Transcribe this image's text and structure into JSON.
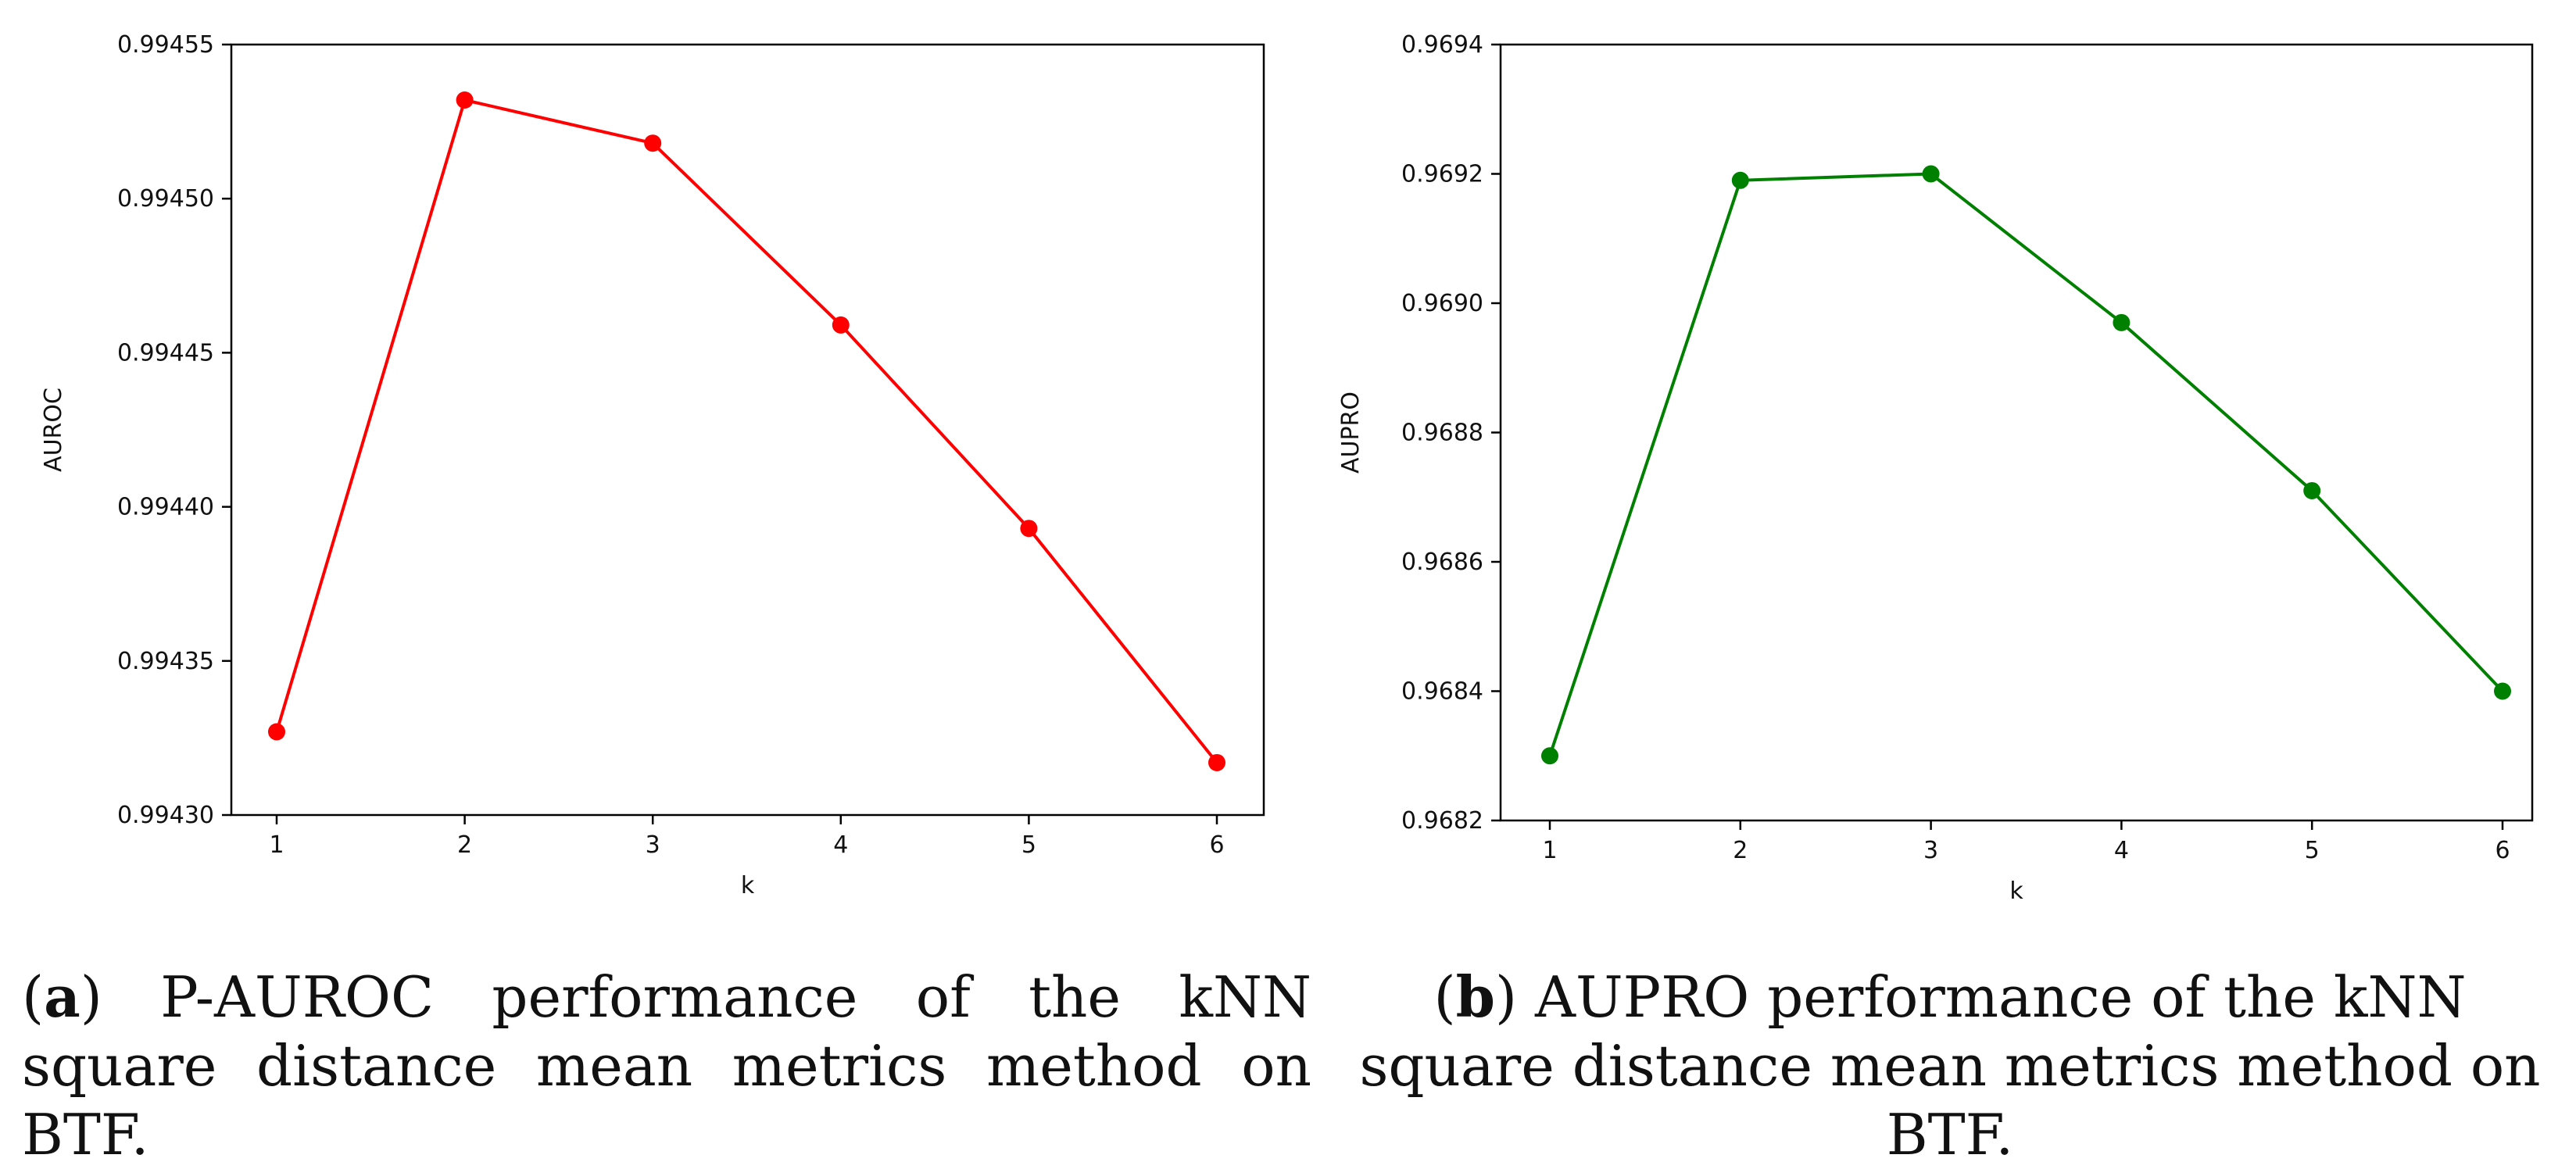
{
  "chart_data": [
    {
      "type": "line",
      "xlabel": "k",
      "ylabel": "AUROC",
      "x": [
        1,
        2,
        3,
        4,
        5,
        6
      ],
      "values": [
        0.994327,
        0.994532,
        0.994518,
        0.994459,
        0.994393,
        0.994317
      ],
      "ylim": [
        0.9943,
        0.99455
      ],
      "yticks": [
        "0.99430",
        "0.99435",
        "0.99440",
        "0.99445",
        "0.99450",
        "0.99455"
      ],
      "ytick_values": [
        0.9943,
        0.99435,
        0.9944,
        0.99445,
        0.9945,
        0.99455
      ],
      "xticks": [
        "1",
        "2",
        "3",
        "4",
        "5",
        "6"
      ],
      "color": "#ff0000",
      "marker": "circle",
      "grid": false
    },
    {
      "type": "line",
      "xlabel": "k",
      "ylabel": "AUPRO",
      "x": [
        1,
        2,
        3,
        4,
        5,
        6
      ],
      "values": [
        0.9683,
        0.96919,
        0.9692,
        0.96897,
        0.96871,
        0.9684
      ],
      "ylim": [
        0.9682,
        0.9694
      ],
      "yticks": [
        "0.9682",
        "0.9684",
        "0.9686",
        "0.9688",
        "0.9690",
        "0.9692",
        "0.9694"
      ],
      "ytick_values": [
        0.9682,
        0.9684,
        0.9686,
        0.9688,
        0.969,
        0.9692,
        0.9694
      ],
      "xticks": [
        "1",
        "2",
        "3",
        "4",
        "5",
        "6"
      ],
      "color": "#008000",
      "marker": "circle",
      "grid": false
    }
  ],
  "captions": {
    "a": {
      "label": "a",
      "text": "P-AUROC performance of the kNN square distance mean metrics method on BTF."
    },
    "b": {
      "label": "b",
      "text": "AUPRO performance of the kNN square distance mean metrics method on BTF."
    }
  }
}
